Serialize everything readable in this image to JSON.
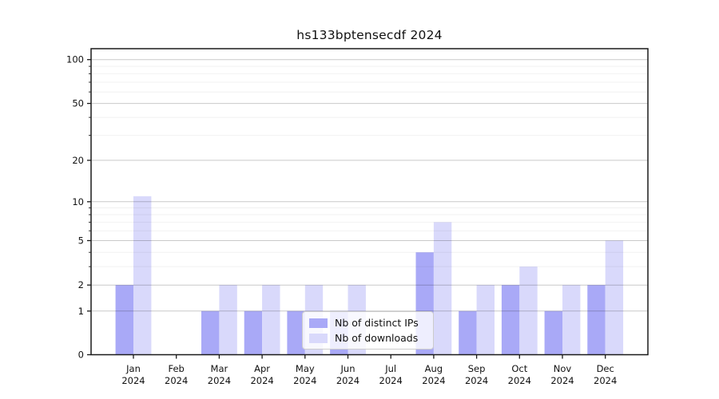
{
  "page": {
    "background": "#ffffff"
  },
  "chart_data": {
    "type": "bar",
    "title": "hs133bptensecdf 2024",
    "year_label": "2024",
    "categories": [
      "Jan",
      "Feb",
      "Mar",
      "Apr",
      "May",
      "Jun",
      "Jul",
      "Aug",
      "Sep",
      "Oct",
      "Nov",
      "Dec"
    ],
    "series": [
      {
        "name": "Nb of distinct IPs",
        "color": "#a9a9f7",
        "values": [
          2,
          0,
          1,
          1,
          1,
          1,
          0,
          4,
          1,
          2,
          1,
          2
        ]
      },
      {
        "name": "Nb of downloads",
        "color": "#d9d9fb",
        "values": [
          11,
          0,
          2,
          2,
          2,
          2,
          0,
          7,
          2,
          3,
          2,
          5
        ]
      }
    ],
    "yscale": "log1p",
    "ylim": [
      0,
      115
    ],
    "y_major_ticks": [
      0,
      1,
      2,
      5,
      10,
      20,
      50,
      100
    ],
    "y_minor_ticks": [
      3,
      4,
      6,
      7,
      8,
      9,
      30,
      40,
      60,
      70,
      80,
      90
    ],
    "grid": "both",
    "legend_position": "lower center",
    "bar_layout": "grouped",
    "colors": {
      "grid_major": "rgba(0,0,0,0.21)",
      "grid_minor": "rgba(0,0,0,0.055)",
      "axis": "#1a1a1a",
      "text": "#111111"
    }
  }
}
